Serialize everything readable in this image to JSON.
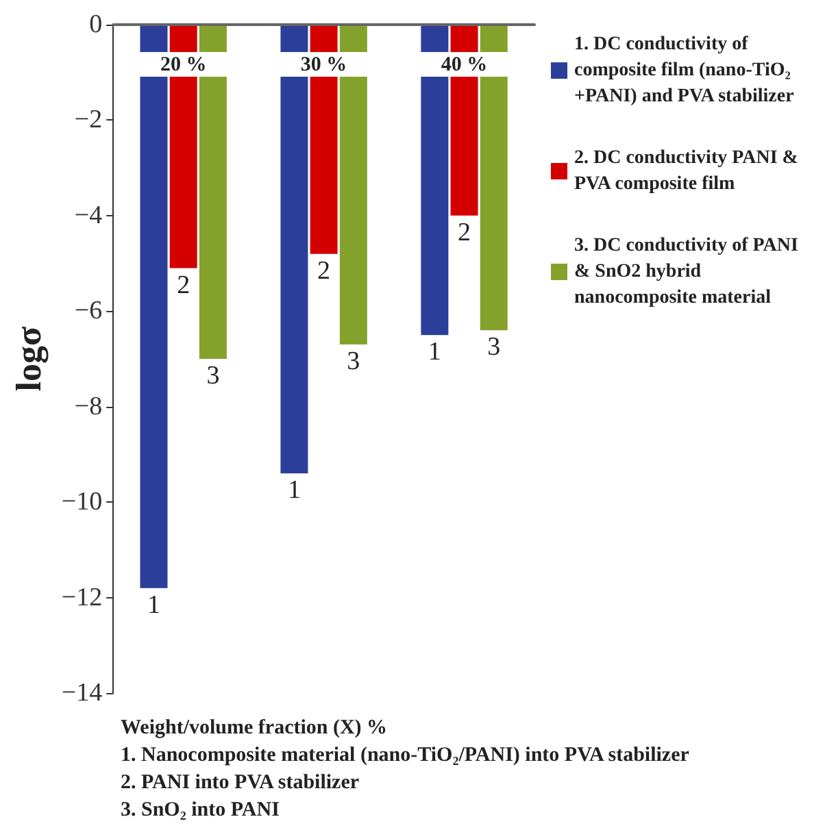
{
  "chart_data": {
    "type": "bar",
    "ylabel": "logσ",
    "categories": [
      "20 %",
      "30 %",
      "40 %"
    ],
    "series": [
      {
        "name": "1. DC conductivity of composite film (nano-TiO₂+PANI) and PVA stabilizer",
        "color": "#2b3f9a",
        "values": [
          -11.8,
          -9.4,
          -6.5
        ]
      },
      {
        "name": "2. DC conductivity PANI & PVA composite film",
        "color": "#d40000",
        "values": [
          -5.1,
          -4.8,
          -4.0
        ]
      },
      {
        "name": "3. DC conductivity of PANI & SnO2 hybrid nanocomposite material",
        "color": "#84a22b",
        "values": [
          -7.0,
          -6.7,
          -6.4
        ]
      }
    ],
    "ylim": [
      -14,
      0
    ],
    "yticks": [
      -14,
      -12,
      -10,
      -8,
      -6,
      -4,
      -2,
      0
    ],
    "grid": false,
    "legend": "right",
    "annotations": [
      "Weight/volume fraction (X) %",
      "1. Nanocomposite material (nano-TiO₂/PANI) into PVA stabilizer",
      "2. PANI into PVA stabilizer",
      "3. SnO₂ into PANI",
      "1",
      "2",
      "3",
      "1",
      "2",
      "3",
      "1",
      "2",
      "3"
    ]
  }
}
